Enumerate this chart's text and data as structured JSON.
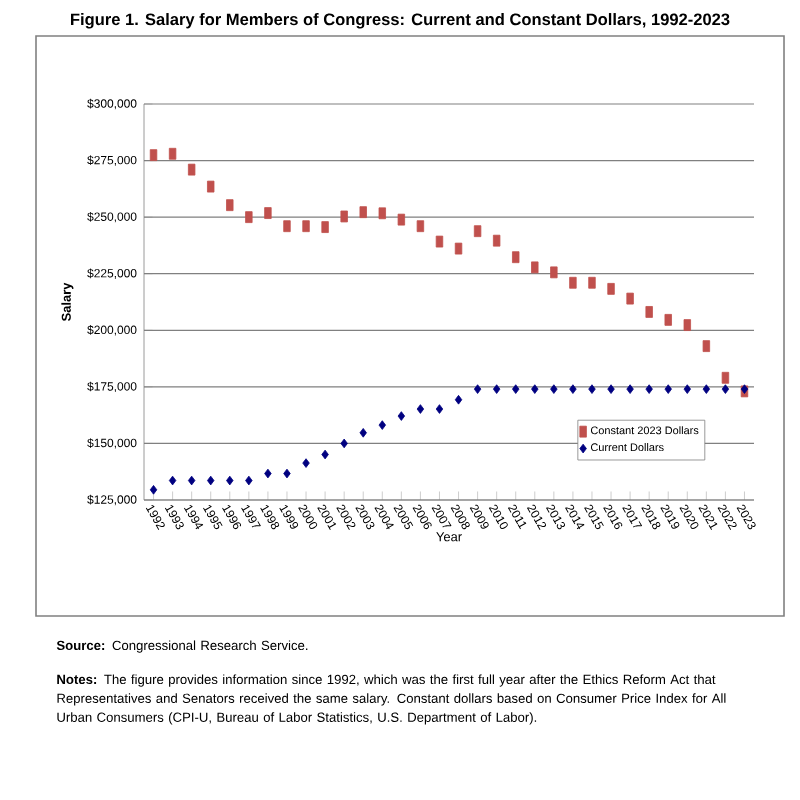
{
  "chart_data": {
    "type": "scatter",
    "title": "Figure 1. Salary for Members of Congress: Current and Constant Dollars, 1992-2023",
    "xlabel": "Year",
    "ylabel": "Salary",
    "categories": [
      "1992",
      "1993",
      "1994",
      "1995",
      "1996",
      "1997",
      "1998",
      "1999",
      "2000",
      "2001",
      "2002",
      "2003",
      "2004",
      "2005",
      "2006",
      "2007",
      "2008",
      "2009",
      "2010",
      "2011",
      "2012",
      "2013",
      "2014",
      "2015",
      "2016",
      "2017",
      "2018",
      "2019",
      "2020",
      "2021",
      "2022",
      "2023"
    ],
    "series": [
      {
        "name": "Constant 2023 Dollars",
        "color": "#c0504d",
        "marker": "square",
        "values": [
          277400,
          278000,
          271000,
          263500,
          255300,
          250000,
          251800,
          246000,
          246000,
          245600,
          250300,
          252200,
          251700,
          248900,
          246000,
          239200,
          236100,
          243800,
          239600,
          232300,
          227800,
          225600,
          221000,
          221000,
          218300,
          214000,
          208100,
          204600,
          202300,
          193000,
          179000,
          173000
        ]
      },
      {
        "name": "Current Dollars",
        "color": "#000080",
        "marker": "diamond",
        "values": [
          129500,
          133600,
          133600,
          133600,
          133600,
          133600,
          136700,
          136700,
          141300,
          145100,
          150000,
          154700,
          158100,
          162100,
          165200,
          165200,
          169300,
          174000,
          174000,
          174000,
          174000,
          174000,
          174000,
          174000,
          174000,
          174000,
          174000,
          174000,
          174000,
          174000,
          174000,
          174000
        ]
      }
    ],
    "ylim": [
      125000,
      300000
    ],
    "yticks": [
      {
        "value": 125000,
        "label": "$125,000"
      },
      {
        "value": 150000,
        "label": "$150,000"
      },
      {
        "value": 175000,
        "label": "$175,000"
      },
      {
        "value": 200000,
        "label": "$200,000"
      },
      {
        "value": 225000,
        "label": "$225,000"
      },
      {
        "value": 250000,
        "label": "$250,000"
      },
      {
        "value": 275000,
        "label": "$275,000"
      },
      {
        "value": 300000,
        "label": "$300,000"
      }
    ],
    "grid": "y",
    "legend": "bottom right",
    "annotations": [
      "**Source:** Congressional Research Service.",
      "**Notes:** The figure provides information since 1992, which was the first full year after the Ethics Reform Act that Representatives and Senators received the same salary. Constant dollars based on Consumer Price Index for All Urban Consumers (CPI-U, Bureau of Labor Statistics, U.S. Department of Labor)."
    ]
  }
}
